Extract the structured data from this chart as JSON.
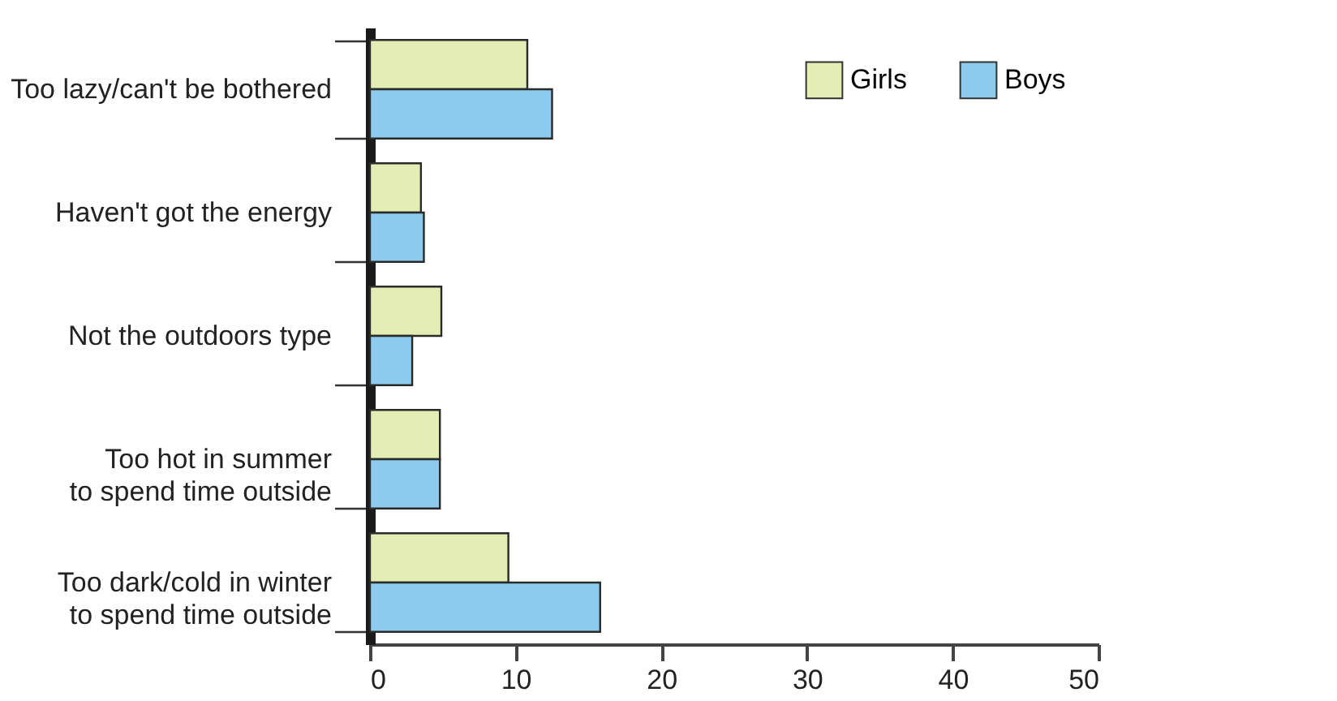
{
  "chart_data": {
    "type": "bar",
    "orientation": "horizontal",
    "categories": [
      "Too lazy/can't be bothered",
      "Haven't got the energy",
      "Not the outdoors type",
      "Too hot in summer\nto spend time outside",
      "Too dark/cold in winter\nto spend time outside"
    ],
    "series": [
      {
        "name": "Girls",
        "color": "#e3ecb3",
        "values": [
          10.8,
          3.5,
          4.9,
          4.8,
          9.5
        ]
      },
      {
        "name": "Boys",
        "color": "#8ccbed",
        "values": [
          12.5,
          3.7,
          2.9,
          4.8,
          15.8
        ]
      }
    ],
    "xlim": [
      0,
      50
    ],
    "xticks": [
      0,
      10,
      20,
      30,
      40,
      50
    ],
    "grid": false,
    "legend": "top right"
  }
}
